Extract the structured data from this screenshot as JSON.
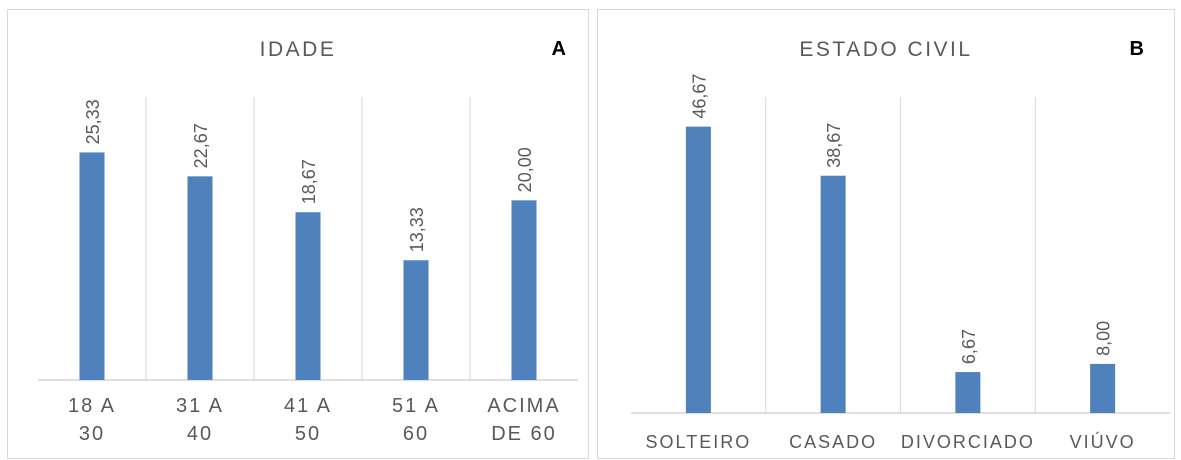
{
  "colors": {
    "bar": "#4f81bd",
    "grid": "#d9d9d9",
    "text": "#595959",
    "axis": "#bfbfbf"
  },
  "chart_data": [
    {
      "type": "bar",
      "panel_letter": "A",
      "title": "IDADE",
      "categories": [
        [
          "18 A",
          "30"
        ],
        [
          "31 A",
          "40"
        ],
        [
          "41 A",
          "50"
        ],
        [
          "51 A",
          "60"
        ],
        [
          "ACIMA",
          "DE 60"
        ]
      ],
      "values": [
        25.33,
        22.67,
        18.67,
        13.33,
        20.0
      ],
      "labels": [
        "25,33",
        "22,67",
        "18,67",
        "13,33",
        "20,00"
      ],
      "ylim": [
        0,
        31.5
      ],
      "grid": "vertical-separators"
    },
    {
      "type": "bar",
      "panel_letter": "B",
      "title": "ESTADO CIVIL",
      "categories": [
        [
          "SOLTEIRO"
        ],
        [
          "CASADO"
        ],
        [
          "DIVORCIADO"
        ],
        [
          "VIÚVO"
        ]
      ],
      "values": [
        46.67,
        38.67,
        6.67,
        8.0
      ],
      "labels": [
        "46,67",
        "38,67",
        "6,67",
        "8,00"
      ],
      "ylim": [
        0,
        51.5
      ],
      "grid": "vertical-separators"
    }
  ]
}
